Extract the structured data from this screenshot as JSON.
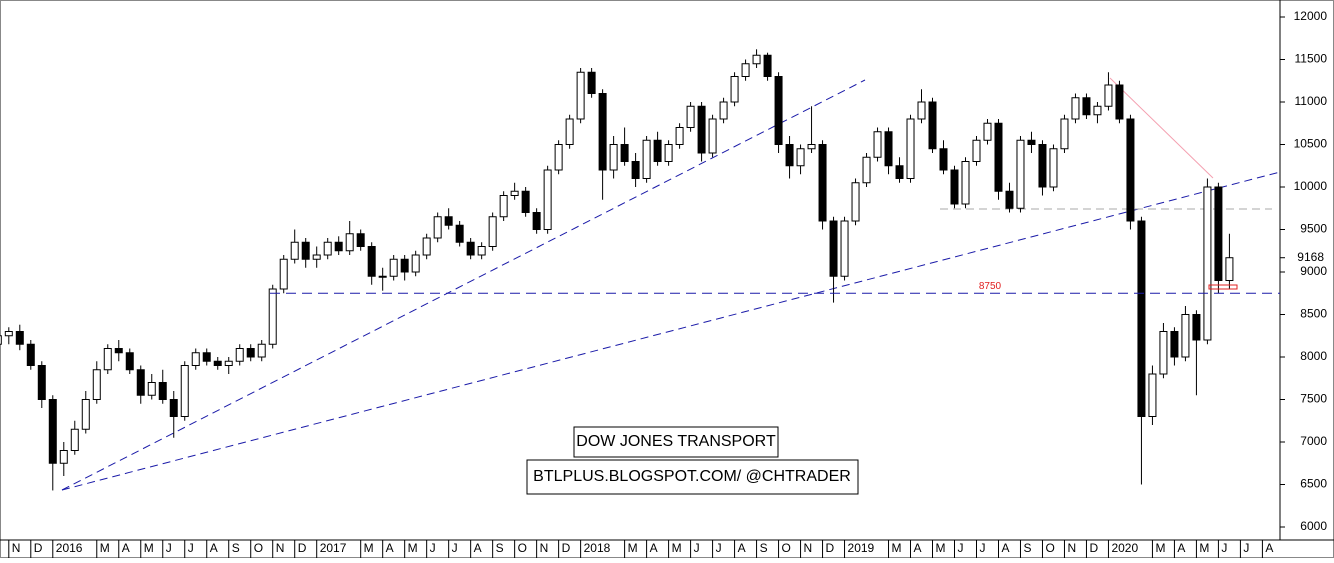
{
  "chart_data": {
    "type": "candlestick",
    "title": "DOW JONES TRANSPORT",
    "subtitle": "BTLPLUS.BLOGSPOT.COM/ @CHTRADER",
    "up_color": "#ffffff",
    "down_color": "#000000",
    "support_level": 8750,
    "support_color": "#1a1aa8",
    "support_label_color": "#e02020",
    "last_price": 9168,
    "ylim": [
      6000,
      12000
    ],
    "yticks": [
      6000,
      6500,
      7000,
      7500,
      8000,
      8500,
      9000,
      9500,
      10000,
      10500,
      11000,
      11500,
      12000
    ],
    "xlim": [
      -0.4,
      57.8
    ],
    "xticks": [
      {
        "value": 0,
        "label": "N"
      },
      {
        "value": 1,
        "label": "D"
      },
      {
        "value": 2,
        "label": "2016"
      },
      {
        "value": 4,
        "label": "M"
      },
      {
        "value": 5,
        "label": "A"
      },
      {
        "value": 6,
        "label": "M"
      },
      {
        "value": 7,
        "label": "J"
      },
      {
        "value": 8,
        "label": "J"
      },
      {
        "value": 9,
        "label": "A"
      },
      {
        "value": 10,
        "label": "S"
      },
      {
        "value": 11,
        "label": "O"
      },
      {
        "value": 12,
        "label": "N"
      },
      {
        "value": 13,
        "label": "D"
      },
      {
        "value": 14,
        "label": "2017"
      },
      {
        "value": 16,
        "label": "M"
      },
      {
        "value": 17,
        "label": "A"
      },
      {
        "value": 18,
        "label": "M"
      },
      {
        "value": 19,
        "label": "J"
      },
      {
        "value": 20,
        "label": "J"
      },
      {
        "value": 21,
        "label": "A"
      },
      {
        "value": 22,
        "label": "S"
      },
      {
        "value": 23,
        "label": "O"
      },
      {
        "value": 24,
        "label": "N"
      },
      {
        "value": 25,
        "label": "D"
      },
      {
        "value": 26,
        "label": "2018"
      },
      {
        "value": 28,
        "label": "M"
      },
      {
        "value": 29,
        "label": "A"
      },
      {
        "value": 30,
        "label": "M"
      },
      {
        "value": 31,
        "label": "J"
      },
      {
        "value": 32,
        "label": "J"
      },
      {
        "value": 33,
        "label": "A"
      },
      {
        "value": 34,
        "label": "S"
      },
      {
        "value": 35,
        "label": "O"
      },
      {
        "value": 36,
        "label": "N"
      },
      {
        "value": 37,
        "label": "D"
      },
      {
        "value": 38,
        "label": "2019"
      },
      {
        "value": 40,
        "label": "M"
      },
      {
        "value": 41,
        "label": "A"
      },
      {
        "value": 42,
        "label": "M"
      },
      {
        "value": 43,
        "label": "J"
      },
      {
        "value": 44,
        "label": "J"
      },
      {
        "value": 45,
        "label": "A"
      },
      {
        "value": 46,
        "label": "S"
      },
      {
        "value": 47,
        "label": "O"
      },
      {
        "value": 48,
        "label": "N"
      },
      {
        "value": 49,
        "label": "D"
      },
      {
        "value": 50,
        "label": "2020"
      },
      {
        "value": 52,
        "label": "M"
      },
      {
        "value": 53,
        "label": "A"
      },
      {
        "value": 54,
        "label": "M"
      },
      {
        "value": 55,
        "label": "J"
      },
      {
        "value": 56,
        "label": "J"
      },
      {
        "value": 57,
        "label": "A"
      }
    ],
    "x": [
      -0.5,
      0,
      0.5,
      1,
      1.5,
      2,
      2.5,
      3,
      3.5,
      4,
      4.5,
      5,
      5.5,
      6,
      6.5,
      7,
      7.5,
      8,
      8.5,
      9,
      9.5,
      10,
      10.5,
      11,
      11.5,
      12,
      12.5,
      13,
      13.5,
      14,
      14.5,
      15,
      15.5,
      16,
      16.5,
      17,
      17.5,
      18,
      18.5,
      19,
      19.5,
      20,
      20.5,
      21,
      21.5,
      22,
      22.5,
      23,
      23.5,
      24,
      24.5,
      25,
      25.5,
      26,
      26.5,
      27,
      27.5,
      28,
      28.5,
      29,
      29.5,
      30,
      30.5,
      31,
      31.5,
      32,
      32.5,
      33,
      33.5,
      34,
      34.5,
      35,
      35.5,
      36,
      36.5,
      37,
      37.5,
      38,
      38.5,
      39,
      39.5,
      40,
      40.5,
      41,
      41.5,
      42,
      42.5,
      43,
      43.5,
      44,
      44.5,
      45,
      45.5,
      46,
      46.5,
      47,
      47.5,
      48,
      48.5,
      49,
      49.5,
      50,
      50.5,
      51,
      51.5,
      52,
      52.5,
      53,
      53.5,
      54,
      54.5,
      55,
      55.5
    ],
    "candles": [
      [
        8150,
        8330,
        8100,
        8250
      ],
      [
        8250,
        8350,
        8150,
        8300
      ],
      [
        8300,
        8380,
        8080,
        8150
      ],
      [
        8150,
        8200,
        7850,
        7900
      ],
      [
        7900,
        7950,
        7400,
        7500
      ],
      [
        7500,
        7550,
        6430,
        6750
      ],
      [
        6750,
        7000,
        6600,
        6900
      ],
      [
        6900,
        7250,
        6850,
        7150
      ],
      [
        7150,
        7600,
        7100,
        7500
      ],
      [
        7500,
        7950,
        7450,
        7850
      ],
      [
        7850,
        8150,
        7800,
        8100
      ],
      [
        8100,
        8200,
        7950,
        8050
      ],
      [
        8050,
        8100,
        7800,
        7850
      ],
      [
        7850,
        7900,
        7450,
        7550
      ],
      [
        7550,
        7800,
        7500,
        7700
      ],
      [
        7700,
        7850,
        7450,
        7500
      ],
      [
        7500,
        7600,
        7050,
        7300
      ],
      [
        7300,
        7950,
        7250,
        7900
      ],
      [
        7900,
        8100,
        7850,
        8050
      ],
      [
        8050,
        8100,
        7900,
        7950
      ],
      [
        7950,
        8000,
        7850,
        7900
      ],
      [
        7900,
        8000,
        7800,
        7950
      ],
      [
        7950,
        8150,
        7900,
        8100
      ],
      [
        8100,
        8150,
        7950,
        8000
      ],
      [
        8000,
        8200,
        7950,
        8150
      ],
      [
        8150,
        8850,
        8100,
        8800
      ],
      [
        8800,
        9200,
        8750,
        9150
      ],
      [
        9150,
        9500,
        9100,
        9350
      ],
      [
        9350,
        9400,
        9050,
        9150
      ],
      [
        9150,
        9300,
        9050,
        9200
      ],
      [
        9200,
        9400,
        9150,
        9350
      ],
      [
        9350,
        9420,
        9200,
        9250
      ],
      [
        9250,
        9600,
        9200,
        9450
      ],
      [
        9450,
        9500,
        9250,
        9300
      ],
      [
        9300,
        9350,
        8850,
        8950
      ],
      [
        8950,
        9050,
        8780,
        8950
      ],
      [
        8950,
        9200,
        8900,
        9150
      ],
      [
        9150,
        9200,
        8900,
        9000
      ],
      [
        9000,
        9250,
        8950,
        9200
      ],
      [
        9200,
        9450,
        9150,
        9400
      ],
      [
        9400,
        9700,
        9350,
        9650
      ],
      [
        9650,
        9750,
        9500,
        9550
      ],
      [
        9550,
        9600,
        9300,
        9350
      ],
      [
        9350,
        9400,
        9150,
        9200
      ],
      [
        9200,
        9350,
        9150,
        9300
      ],
      [
        9300,
        9700,
        9250,
        9650
      ],
      [
        9650,
        9950,
        9600,
        9900
      ],
      [
        9900,
        10050,
        9850,
        9950
      ],
      [
        9950,
        10000,
        9650,
        9700
      ],
      [
        9700,
        9750,
        9450,
        9500
      ],
      [
        9500,
        10250,
        9450,
        10200
      ],
      [
        10200,
        10550,
        10150,
        10500
      ],
      [
        10500,
        10850,
        10450,
        10800
      ],
      [
        10800,
        11400,
        10750,
        11350
      ],
      [
        11350,
        11400,
        11050,
        11100
      ],
      [
        11100,
        11150,
        9850,
        10200
      ],
      [
        10200,
        10600,
        10100,
        10500
      ],
      [
        10500,
        10700,
        10250,
        10300
      ],
      [
        10300,
        10400,
        10000,
        10100
      ],
      [
        10100,
        10600,
        10050,
        10550
      ],
      [
        10550,
        10650,
        10250,
        10300
      ],
      [
        10300,
        10550,
        10250,
        10500
      ],
      [
        10500,
        10750,
        10450,
        10700
      ],
      [
        10700,
        11000,
        10650,
        10950
      ],
      [
        10950,
        11000,
        10300,
        10400
      ],
      [
        10400,
        10850,
        10350,
        10800
      ],
      [
        10800,
        11050,
        10750,
        11000
      ],
      [
        11000,
        11350,
        10950,
        11300
      ],
      [
        11300,
        11500,
        11250,
        11450
      ],
      [
        11450,
        11620,
        11400,
        11550
      ],
      [
        11550,
        11580,
        11250,
        11300
      ],
      [
        11300,
        11350,
        10400,
        10500
      ],
      [
        10500,
        10600,
        10100,
        10250
      ],
      [
        10250,
        10500,
        10150,
        10450
      ],
      [
        10450,
        10950,
        10400,
        10500
      ],
      [
        10500,
        10550,
        9500,
        9600
      ],
      [
        9600,
        9650,
        8640,
        8950
      ],
      [
        8950,
        9650,
        8900,
        9600
      ],
      [
        9600,
        10100,
        9550,
        10050
      ],
      [
        10050,
        10400,
        10000,
        10350
      ],
      [
        10350,
        10700,
        10300,
        10650
      ],
      [
        10650,
        10700,
        10150,
        10250
      ],
      [
        10250,
        10350,
        10050,
        10100
      ],
      [
        10100,
        10850,
        10050,
        10800
      ],
      [
        10800,
        11150,
        10750,
        11000
      ],
      [
        11000,
        11050,
        10400,
        10450
      ],
      [
        10450,
        10550,
        10150,
        10200
      ],
      [
        10200,
        10250,
        9750,
        9800
      ],
      [
        9800,
        10350,
        9750,
        10300
      ],
      [
        10300,
        10600,
        10250,
        10550
      ],
      [
        10550,
        10800,
        10500,
        10750
      ],
      [
        10750,
        10800,
        9850,
        9950
      ],
      [
        9950,
        10050,
        9700,
        9750
      ],
      [
        9750,
        10600,
        9700,
        10550
      ],
      [
        10550,
        10650,
        10400,
        10500
      ],
      [
        10500,
        10550,
        9900,
        10000
      ],
      [
        10000,
        10500,
        9950,
        10450
      ],
      [
        10450,
        10850,
        10400,
        10800
      ],
      [
        10800,
        11100,
        10750,
        11050
      ],
      [
        11050,
        11100,
        10800,
        10850
      ],
      [
        10850,
        11000,
        10750,
        10950
      ],
      [
        10950,
        11350,
        10900,
        11200
      ],
      [
        11200,
        11250,
        10750,
        10800
      ],
      [
        10800,
        10850,
        9500,
        9600
      ],
      [
        9600,
        9650,
        6500,
        7300
      ],
      [
        7300,
        7900,
        7200,
        7800
      ],
      [
        7800,
        8400,
        7750,
        8300
      ],
      [
        8300,
        8350,
        7900,
        8000
      ],
      [
        8000,
        8600,
        7950,
        8500
      ],
      [
        8500,
        8550,
        7550,
        8200
      ],
      [
        8200,
        10100,
        8150,
        10000
      ],
      [
        10000,
        10050,
        8750,
        8900
      ],
      [
        8900,
        9450,
        8800,
        9168
      ]
    ]
  }
}
